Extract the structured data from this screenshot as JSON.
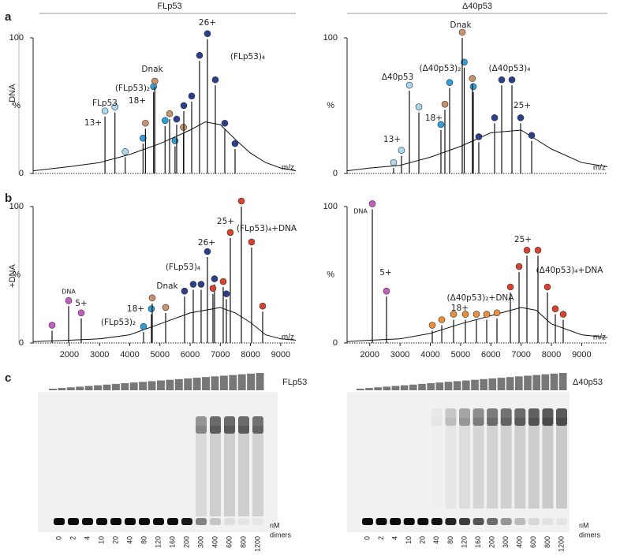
{
  "headers": [
    "FLp53",
    "Δ40p53"
  ],
  "panel_labels": [
    "a",
    "b",
    "c"
  ],
  "row_labels": [
    "-DNA",
    "+DNA"
  ],
  "spectra": [
    {
      "xlim": [
        800,
        9500
      ],
      "ylim": [
        0,
        100
      ],
      "yticks": [
        0,
        100
      ],
      "ylabel": "%",
      "xlabel": "m/z",
      "trace": {
        "mz": [
          800,
          2000,
          3000,
          4000,
          5000,
          6000,
          6500,
          7000,
          7500,
          8000,
          8500,
          9000,
          9500
        ],
        "intensity": [
          2,
          5,
          8,
          14,
          22,
          32,
          38,
          36,
          25,
          15,
          8,
          4,
          2
        ]
      },
      "peak_groups": [
        {
          "color": "#a8d8f0",
          "mz": [
            3180,
            3510,
            3850
          ],
          "intensity": [
            42,
            45,
            12
          ]
        },
        {
          "color": "#2e9fd8",
          "mz": [
            4440,
            4790,
            5170,
            5500
          ],
          "intensity": [
            22,
            60,
            35,
            20
          ]
        },
        {
          "color": "#c8926b",
          "mz": [
            4520,
            4830,
            5320,
            5780
          ],
          "intensity": [
            33,
            64,
            40,
            30
          ]
        },
        {
          "color": "#2b3f8c",
          "mz": [
            5554,
            5790,
            6051,
            6312,
            6573,
            6835,
            7148,
            7488
          ],
          "intensity": [
            36,
            46,
            53,
            83,
            99,
            65,
            33,
            18
          ]
        }
      ],
      "annotations": [
        {
          "text": "13+",
          "color": "#222"
        },
        {
          "text": "FLp53",
          "color": "#6fbde6"
        },
        {
          "text": "18+",
          "color": "#222"
        },
        {
          "text": "(FLp53)₂",
          "color": "#2e9fd8"
        },
        {
          "text": "Dnak",
          "color": "#c8926b"
        },
        {
          "text": "26+",
          "color": "#222"
        },
        {
          "text": "(FLp53)₄",
          "color": "#2b3f8c"
        }
      ]
    },
    {
      "xlim": [
        1250,
        9850
      ],
      "ylim": [
        0,
        100
      ],
      "yticks": [
        0,
        100
      ],
      "ylabel": "%",
      "xlabel": "m/z",
      "trace": {
        "mz": [
          1250,
          2000,
          3000,
          4000,
          5000,
          6000,
          7000,
          7500,
          8000,
          9000,
          9850
        ],
        "intensity": [
          2,
          4,
          6,
          12,
          20,
          30,
          32,
          25,
          18,
          8,
          5
        ]
      },
      "peak_groups": [
        {
          "color": "#a8d8f0",
          "mz": [
            2788,
            3048,
            3309,
            3622
          ],
          "intensity": [
            4,
            13,
            61,
            45
          ]
        },
        {
          "color": "#2e9fd8",
          "mz": [
            4351,
            4638,
            5120,
            5420
          ],
          "intensity": [
            32,
            63,
            78,
            60
          ]
        },
        {
          "color": "#c8926b",
          "mz": [
            4482,
            5055,
            5390
          ],
          "intensity": [
            47,
            100,
            66
          ]
        },
        {
          "color": "#2b3f8c",
          "mz": [
            5602,
            6124,
            6358,
            6697,
            6984,
            7349
          ],
          "intensity": [
            23,
            37,
            65,
            65,
            37,
            24
          ]
        }
      ],
      "annotations": [
        {
          "text": "13+",
          "color": "#222"
        },
        {
          "text": "Δ40p53",
          "color": "#6fbde6"
        },
        {
          "text": "18+",
          "color": "#222"
        },
        {
          "text": "(Δ40p53)₂",
          "color": "#2e9fd8"
        },
        {
          "text": "Dnak",
          "color": "#c8926b"
        },
        {
          "text": "(Δ40p53)₄",
          "color": "#2b3f8c"
        },
        {
          "text": "25+",
          "color": "#222"
        }
      ]
    },
    {
      "xlim": [
        800,
        9500
      ],
      "ylim": [
        0,
        100
      ],
      "yticks": [
        0,
        100
      ],
      "ylabel": "%",
      "xlabel": "m/z",
      "xticks": [
        2000,
        3000,
        4000,
        5000,
        6000,
        7000,
        8000,
        9000
      ],
      "trace": {
        "mz": [
          800,
          2000,
          3000,
          4000,
          5000,
          6000,
          7000,
          7500,
          8000,
          8500,
          9000,
          9500
        ],
        "intensity": [
          1,
          2,
          3,
          6,
          14,
          22,
          26,
          22,
          15,
          6,
          3,
          2
        ]
      },
      "peak_groups": [
        {
          "color": "#c65fc3",
          "mz": [
            1427,
            1976,
            2394
          ],
          "intensity": [
            9,
            27,
            18
          ]
        },
        {
          "color": "#2e9fd8",
          "mz": [
            4457,
            4718
          ],
          "intensity": [
            8,
            21
          ]
        },
        {
          "color": "#c8926b",
          "mz": [
            4745,
            5189
          ],
          "intensity": [
            29,
            22
          ]
        },
        {
          "color": "#2b3f8c",
          "mz": [
            5816,
            6103,
            6364,
            6573,
            6808,
            7200
          ],
          "intensity": [
            34,
            39,
            39,
            63,
            43,
            32
          ]
        },
        {
          "color": "#d9432e",
          "mz": [
            6756,
            7096,
            7331,
            7697,
            8036,
            8402
          ],
          "intensity": [
            36,
            41,
            77,
            100,
            70,
            23
          ]
        }
      ],
      "annotations": [
        {
          "text": "DNA",
          "color": "#c65fc3"
        },
        {
          "text": "5+",
          "color": "#222"
        },
        {
          "text": "(FLp53)₂",
          "color": "#2e9fd8"
        },
        {
          "text": "18+",
          "color": "#222"
        },
        {
          "text": "Dnak",
          "color": "#c8926b"
        },
        {
          "text": "(FLp53)₄",
          "color": "#2b3f8c"
        },
        {
          "text": "26+",
          "color": "#222"
        },
        {
          "text": "25+",
          "color": "#222"
        },
        {
          "text": "(FLp53)₄+DNA",
          "color": "#d9432e"
        }
      ]
    },
    {
      "xlim": [
        1250,
        9850
      ],
      "ylim": [
        0,
        100
      ],
      "yticks": [
        0,
        100
      ],
      "ylabel": "%",
      "xlabel": "m/z",
      "xticks": [
        2000,
        3000,
        4000,
        5000,
        6000,
        7000,
        8000,
        9000
      ],
      "trace": {
        "mz": [
          1250,
          2000,
          3000,
          4000,
          5000,
          6000,
          7000,
          7500,
          8000,
          9000,
          9850
        ],
        "intensity": [
          1,
          2,
          3,
          7,
          14,
          20,
          26,
          24,
          14,
          6,
          4
        ]
      },
      "peak_groups": [
        {
          "color": "#c65fc3",
          "mz": [
            2084,
            2553
          ],
          "intensity": [
            98,
            34
          ]
        },
        {
          "color": "#e8913a",
          "mz": [
            4065,
            4378,
            4768,
            5159,
            5524,
            5863,
            6202
          ],
          "intensity": [
            9,
            13,
            17,
            17,
            17,
            17,
            18
          ]
        },
        {
          "color": "#d9432e",
          "mz": [
            6645,
            6932,
            7192,
            7557,
            7870,
            8130,
            8391
          ],
          "intensity": [
            37,
            52,
            64,
            64,
            37,
            21,
            17
          ]
        }
      ],
      "annotations": [
        {
          "text": "DNA",
          "color": "#c65fc3"
        },
        {
          "text": "5+",
          "color": "#222"
        },
        {
          "text": "(Δ40p53)₂+DNA",
          "color": "#e8913a"
        },
        {
          "text": "18+",
          "color": "#222"
        },
        {
          "text": "25+",
          "color": "#222"
        },
        {
          "text": "(Δ40p53)₄+DNA",
          "color": "#d9432e"
        }
      ]
    }
  ],
  "gels": [
    {
      "protein": "FLp53",
      "lanes": [
        "0",
        "2",
        "4",
        "10",
        "20",
        "40",
        "80",
        "120",
        "160",
        "200",
        "300",
        "400",
        "600",
        "800",
        "1200"
      ],
      "unit_label": [
        "nM",
        "dimers"
      ]
    },
    {
      "protein": "Δ40p53",
      "lanes": [
        "0",
        "2",
        "4",
        "10",
        "20",
        "40",
        "80",
        "120",
        "160",
        "200",
        "300",
        "400",
        "600",
        "800",
        "1200"
      ],
      "unit_label": [
        "nM",
        "dimers"
      ]
    }
  ]
}
